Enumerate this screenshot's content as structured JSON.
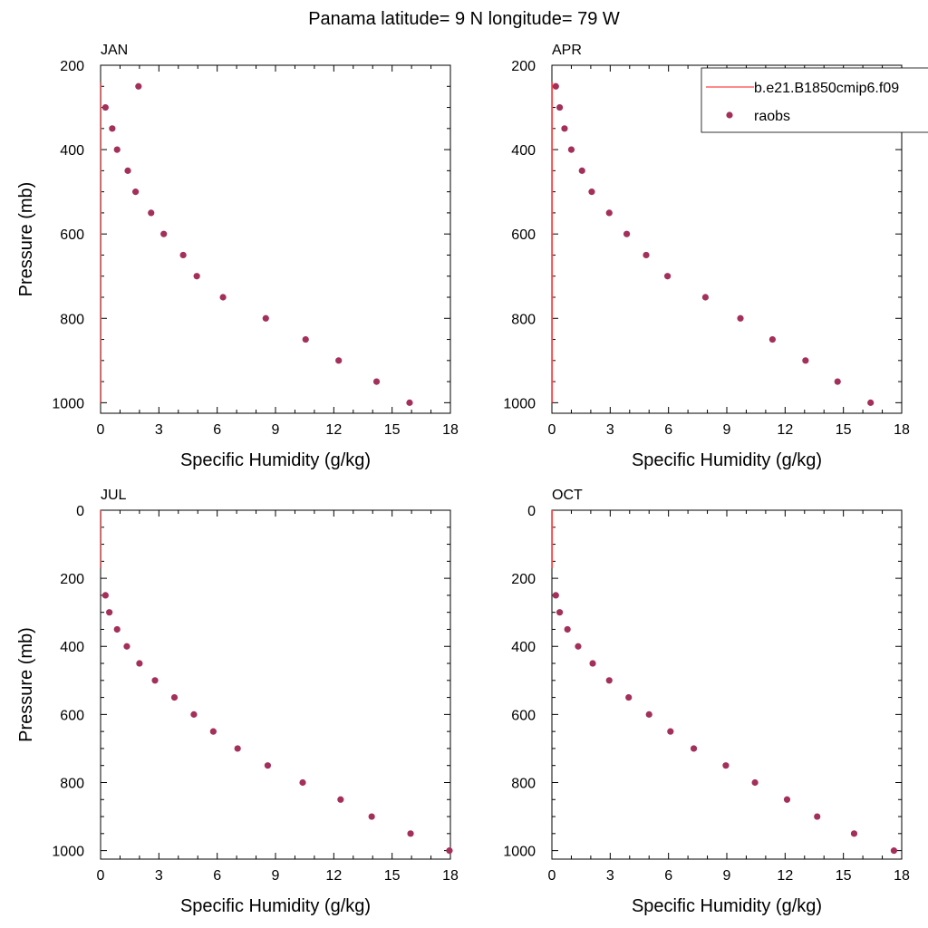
{
  "title": "Panama  latitude= 9 N longitude= 79 W",
  "colors": {
    "model_line": "#ff4444",
    "obs_marker": "#a3305a",
    "frame": "#000000"
  },
  "legend": {
    "position": "top-right",
    "entries": [
      {
        "label": "b.e21.B1850cmip6.f09",
        "kind": "line"
      },
      {
        "label": "raobs",
        "kind": "marker"
      }
    ]
  },
  "chart_data": [
    {
      "type": "scatter",
      "panel_label": "JAN",
      "xlabel": "Specific Humidity (g/kg)",
      "ylabel": "Pressure (mb)",
      "xlim": [
        0,
        18
      ],
      "ylim": [
        1025,
        200
      ],
      "xticks": [
        "0",
        "3",
        "6",
        "9",
        "12",
        "15",
        "18"
      ],
      "yticks": [
        "200",
        "400",
        "600",
        "800",
        "1000"
      ],
      "series": [
        {
          "name": "b.e21.B1850cmip6.f09",
          "kind": "line",
          "x": [
            0.02,
            0.02
          ],
          "y": [
            240,
            1000
          ]
        },
        {
          "name": "raobs",
          "kind": "marker",
          "x": [
            1.95,
            0.25,
            0.6,
            0.85,
            1.4,
            1.8,
            2.6,
            3.25,
            4.25,
            4.95,
            6.3,
            8.5,
            10.55,
            12.25,
            14.2,
            15.9
          ],
          "y": [
            250,
            300,
            350,
            400,
            450,
            500,
            550,
            600,
            650,
            700,
            750,
            800,
            850,
            900,
            950,
            1000
          ]
        }
      ]
    },
    {
      "type": "scatter",
      "panel_label": "APR",
      "xlabel": "Specific Humidity (g/kg)",
      "ylabel": "",
      "xlim": [
        0,
        18
      ],
      "ylim": [
        1025,
        200
      ],
      "xticks": [
        "0",
        "3",
        "6",
        "9",
        "12",
        "15",
        "18"
      ],
      "yticks": [
        "200",
        "400",
        "600",
        "800",
        "1000"
      ],
      "series": [
        {
          "name": "b.e21.B1850cmip6.f09",
          "kind": "line",
          "x": [
            0.02,
            0.02
          ],
          "y": [
            240,
            1000
          ]
        },
        {
          "name": "raobs",
          "kind": "marker",
          "x": [
            0.2,
            0.4,
            0.65,
            1.0,
            1.55,
            2.05,
            2.95,
            3.85,
            4.85,
            5.95,
            7.9,
            9.7,
            11.35,
            13.05,
            14.7,
            16.4
          ],
          "y": [
            250,
            300,
            350,
            400,
            450,
            500,
            550,
            600,
            650,
            700,
            750,
            800,
            850,
            900,
            950,
            1000
          ]
        }
      ]
    },
    {
      "type": "scatter",
      "panel_label": "JUL",
      "xlabel": "Specific Humidity (g/kg)",
      "ylabel": "Pressure (mb)",
      "xlim": [
        0,
        18
      ],
      "ylim": [
        1025,
        0
      ],
      "xticks": [
        "0",
        "3",
        "6",
        "9",
        "12",
        "15",
        "18"
      ],
      "yticks": [
        "0",
        "200",
        "400",
        "600",
        "800",
        "1000"
      ],
      "series": [
        {
          "name": "b.e21.B1850cmip6.f09",
          "kind": "line",
          "x": [
            0.02,
            0.02
          ],
          "y": [
            0,
            170
          ]
        },
        {
          "name": "raobs",
          "kind": "marker",
          "x": [
            0.25,
            0.45,
            0.85,
            1.35,
            2.0,
            2.8,
            3.8,
            4.8,
            5.8,
            7.05,
            8.6,
            10.4,
            12.35,
            13.95,
            15.95,
            17.95
          ],
          "y": [
            250,
            300,
            350,
            400,
            450,
            500,
            550,
            600,
            650,
            700,
            750,
            800,
            850,
            900,
            950,
            1000
          ]
        }
      ]
    },
    {
      "type": "scatter",
      "panel_label": "OCT",
      "xlabel": "Specific Humidity (g/kg)",
      "ylabel": "",
      "xlim": [
        0,
        18
      ],
      "ylim": [
        1025,
        0
      ],
      "xticks": [
        "0",
        "3",
        "6",
        "9",
        "12",
        "15",
        "18"
      ],
      "yticks": [
        "0",
        "200",
        "400",
        "600",
        "800",
        "1000"
      ],
      "series": [
        {
          "name": "b.e21.B1850cmip6.f09",
          "kind": "line",
          "x": [
            0.02,
            0.02
          ],
          "y": [
            0,
            170
          ]
        },
        {
          "name": "raobs",
          "kind": "marker",
          "x": [
            0.2,
            0.4,
            0.8,
            1.35,
            2.1,
            2.95,
            3.95,
            5.0,
            6.1,
            7.3,
            8.95,
            10.45,
            12.1,
            13.65,
            15.55,
            17.6
          ],
          "y": [
            250,
            300,
            350,
            400,
            450,
            500,
            550,
            600,
            650,
            700,
            750,
            800,
            850,
            900,
            950,
            1000
          ]
        }
      ]
    }
  ]
}
